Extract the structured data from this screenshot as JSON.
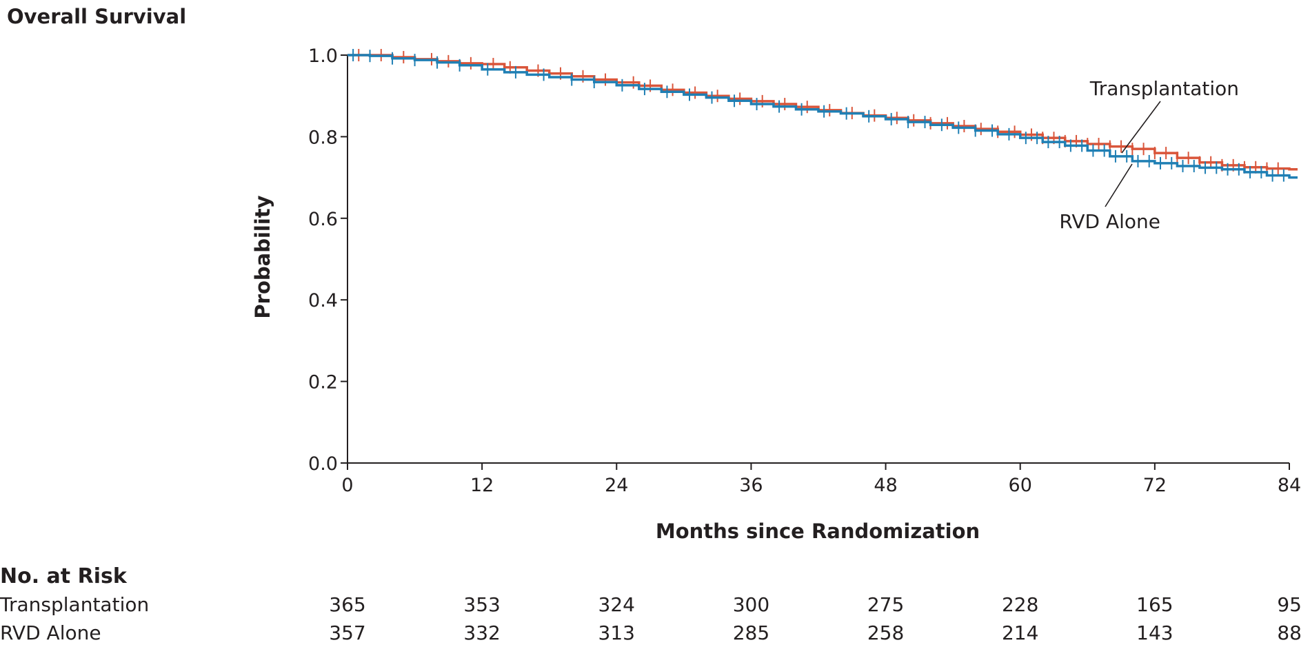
{
  "panel_title": "Overall Survival",
  "risk_table": {
    "header": "No. at Risk",
    "rows": [
      {
        "label": "Transplantation",
        "values": [
          "365",
          "353",
          "324",
          "300",
          "275",
          "228",
          "165",
          "95"
        ]
      },
      {
        "label": "RVD Alone",
        "values": [
          "357",
          "332",
          "313",
          "285",
          "258",
          "214",
          "143",
          "88"
        ]
      }
    ]
  },
  "chart_data": {
    "type": "line",
    "subtype": "kaplan-meier step",
    "title": "Overall Survival",
    "xlabel": "Months since Randomization",
    "ylabel": "Probability",
    "xlim": [
      0,
      84
    ],
    "ylim": [
      0,
      1.0
    ],
    "x_ticks": [
      0,
      12,
      24,
      36,
      48,
      60,
      72,
      84
    ],
    "x_tick_labels": [
      "0",
      "12",
      "24",
      "36",
      "48",
      "60",
      "72",
      "84"
    ],
    "y_ticks": [
      0,
      0.2,
      0.4,
      0.6,
      0.8,
      1.0
    ],
    "y_tick_labels": [
      "0.0",
      "0.2",
      "0.4",
      "0.6",
      "0.8",
      "1.0"
    ],
    "grid": false,
    "legend": "none (direct labels on curves)",
    "annotations": [
      {
        "text": "Transplantation",
        "series": "Transplantation"
      },
      {
        "text": "RVD Alone",
        "series": "RVD Alone"
      }
    ],
    "series": [
      {
        "name": "Transplantation",
        "color": "#d9553a",
        "points": [
          [
            0,
            1.0
          ],
          [
            2,
            1.0
          ],
          [
            4,
            0.995
          ],
          [
            6,
            0.99
          ],
          [
            8,
            0.985
          ],
          [
            10,
            0.98
          ],
          [
            12,
            0.978
          ],
          [
            14,
            0.97
          ],
          [
            16,
            0.962
          ],
          [
            18,
            0.955
          ],
          [
            20,
            0.948
          ],
          [
            22,
            0.94
          ],
          [
            24,
            0.933
          ],
          [
            26,
            0.925
          ],
          [
            28,
            0.915
          ],
          [
            30,
            0.908
          ],
          [
            32,
            0.9
          ],
          [
            34,
            0.893
          ],
          [
            36,
            0.887
          ],
          [
            38,
            0.88
          ],
          [
            40,
            0.873
          ],
          [
            42,
            0.865
          ],
          [
            44,
            0.858
          ],
          [
            46,
            0.852
          ],
          [
            48,
            0.846
          ],
          [
            50,
            0.84
          ],
          [
            52,
            0.833
          ],
          [
            54,
            0.826
          ],
          [
            56,
            0.819
          ],
          [
            58,
            0.812
          ],
          [
            60,
            0.805
          ],
          [
            62,
            0.797
          ],
          [
            64,
            0.789
          ],
          [
            66,
            0.782
          ],
          [
            68,
            0.776
          ],
          [
            70,
            0.77
          ],
          [
            72,
            0.76
          ],
          [
            74,
            0.748
          ],
          [
            76,
            0.737
          ],
          [
            78,
            0.73
          ],
          [
            80,
            0.725
          ],
          [
            82,
            0.722
          ],
          [
            84,
            0.72
          ]
        ],
        "censor_x": [
          1,
          3,
          5,
          7.5,
          9,
          11,
          13,
          14.5,
          17,
          19,
          21,
          23,
          25.5,
          27,
          29,
          31,
          33,
          35,
          37,
          39,
          41,
          43,
          45,
          47,
          49,
          50.5,
          52,
          53.5,
          55,
          56.5,
          58,
          59.5,
          61,
          62,
          63,
          64,
          65,
          66,
          67,
          68,
          69,
          70,
          71,
          72,
          73,
          74,
          75,
          76,
          77,
          78,
          79,
          80,
          81,
          82,
          83
        ]
      },
      {
        "name": "RVD Alone",
        "color": "#1f7fb4",
        "points": [
          [
            0,
            1.0
          ],
          [
            2,
            0.998
          ],
          [
            4,
            0.992
          ],
          [
            6,
            0.988
          ],
          [
            8,
            0.982
          ],
          [
            10,
            0.975
          ],
          [
            12,
            0.965
          ],
          [
            14,
            0.958
          ],
          [
            16,
            0.952
          ],
          [
            18,
            0.946
          ],
          [
            20,
            0.94
          ],
          [
            22,
            0.934
          ],
          [
            24,
            0.926
          ],
          [
            26,
            0.917
          ],
          [
            28,
            0.91
          ],
          [
            30,
            0.903
          ],
          [
            32,
            0.896
          ],
          [
            34,
            0.888
          ],
          [
            36,
            0.88
          ],
          [
            38,
            0.874
          ],
          [
            40,
            0.867
          ],
          [
            42,
            0.862
          ],
          [
            44,
            0.857
          ],
          [
            46,
            0.85
          ],
          [
            48,
            0.843
          ],
          [
            50,
            0.836
          ],
          [
            52,
            0.829
          ],
          [
            54,
            0.822
          ],
          [
            56,
            0.815
          ],
          [
            58,
            0.806
          ],
          [
            60,
            0.797
          ],
          [
            62,
            0.787
          ],
          [
            64,
            0.778
          ],
          [
            66,
            0.766
          ],
          [
            68,
            0.752
          ],
          [
            70,
            0.74
          ],
          [
            72,
            0.735
          ],
          [
            74,
            0.728
          ],
          [
            76,
            0.724
          ],
          [
            78,
            0.72
          ],
          [
            80,
            0.713
          ],
          [
            82,
            0.705
          ],
          [
            84,
            0.7
          ]
        ],
        "censor_x": [
          0.5,
          2,
          4,
          6,
          8,
          10,
          12.5,
          15,
          17.5,
          20,
          22,
          24.5,
          26.5,
          28.5,
          30.5,
          32.5,
          34.5,
          36.5,
          38.5,
          40.5,
          42.5,
          44.5,
          46.5,
          48.5,
          50,
          51.5,
          53,
          54.5,
          56,
          57.5,
          59,
          60.5,
          61.5,
          62.5,
          63.5,
          64.5,
          65.5,
          66.5,
          67.5,
          68.5,
          69.5,
          70.5,
          71.5,
          72.5,
          73.5,
          74.5,
          75.5,
          76.5,
          77.5,
          78.5,
          79.5,
          80.5,
          81.5,
          82.5,
          83.5
        ]
      }
    ]
  }
}
